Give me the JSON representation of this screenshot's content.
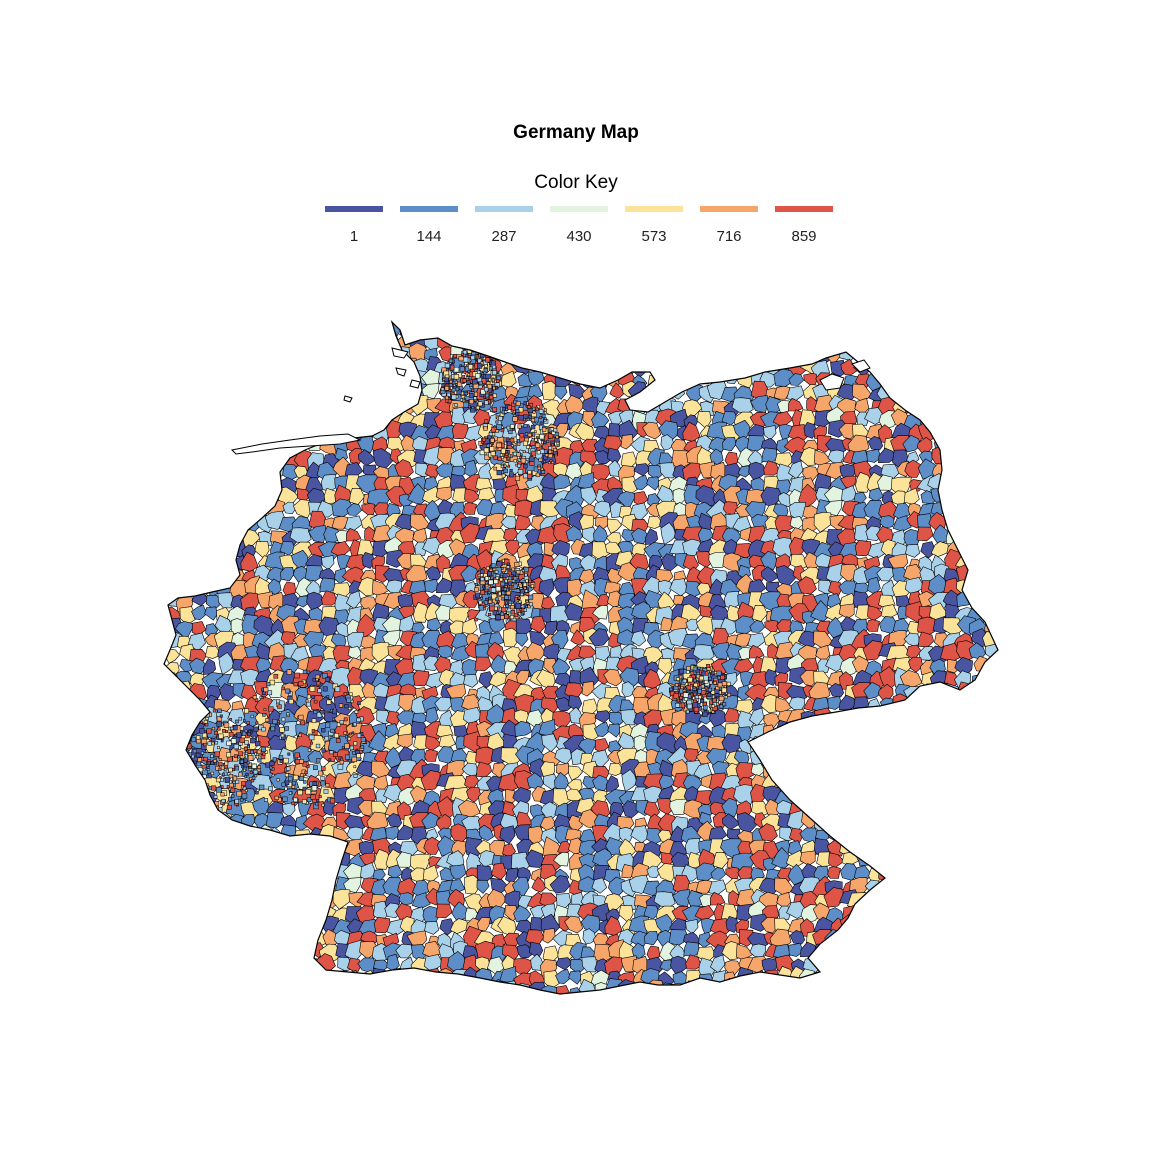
{
  "title": "Germany Map",
  "legend": {
    "title": "Color Key",
    "items": [
      {
        "label": "1",
        "color": "#4A55A2"
      },
      {
        "label": "144",
        "color": "#5E8EC7"
      },
      {
        "label": "287",
        "color": "#A9D1EA"
      },
      {
        "label": "430",
        "color": "#E2F3E0"
      },
      {
        "label": "573",
        "color": "#FCE39A"
      },
      {
        "label": "716",
        "color": "#F6A66A"
      },
      {
        "label": "859",
        "color": "#DE5446"
      }
    ]
  },
  "map": {
    "region": "Germany",
    "boundary_color": "#000000"
  }
}
